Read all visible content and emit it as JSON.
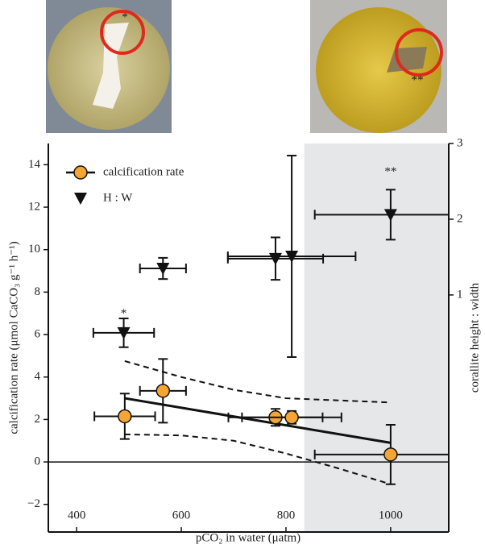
{
  "chart_data": {
    "type": "scatter",
    "xlabel": "pCO₂ in water (μatm)",
    "ylabel": "calcification rate (μmol CaCO₃ g⁻¹ h⁻¹)",
    "y2label": "corallite height : width",
    "xlim": [
      346,
      1111
    ],
    "xticks": [
      400,
      600,
      800,
      1000
    ],
    "ylim": [
      -3.3,
      15
    ],
    "yticks": [
      {
        "value": -2,
        "label": "−2"
      },
      0,
      2,
      4,
      6,
      8,
      10,
      12,
      14
    ],
    "y2lim": [
      -2.13,
      3
    ],
    "y2ticks": [
      1,
      2,
      3
    ],
    "shaded_from": 835,
    "series": [
      {
        "name": "calcification rate",
        "color": "#f4a533",
        "marker": "circle",
        "x": [
          492,
          565,
          780,
          811,
          1000
        ],
        "values": [
          2.15,
          3.35,
          2.1,
          2.1,
          0.35
        ],
        "x_err": [
          58,
          44,
          90,
          95,
          145
        ],
        "y_err": [
          1.07,
          1.5,
          0.4,
          0.3,
          1.4
        ]
      },
      {
        "name": "H : W",
        "color": "#111111",
        "marker": "triangle",
        "axis": "y2",
        "x": [
          490,
          565,
          780,
          811,
          1000
        ],
        "values": [
          0.5,
          1.35,
          1.48,
          1.51,
          2.06
        ],
        "x_err": [
          58,
          44,
          91,
          122,
          145
        ],
        "y_err": [
          0.19,
          0.14,
          0.28,
          1.33,
          0.33
        ]
      }
    ],
    "fit": {
      "x": [
        492,
        1000
      ],
      "values": [
        3.0,
        0.9
      ]
    },
    "band_upper": {
      "x": [
        492,
        600,
        700,
        800,
        1000
      ],
      "values": [
        4.75,
        4.0,
        3.4,
        3.0,
        2.8
      ]
    },
    "band_lower": {
      "x": [
        492,
        600,
        700,
        800,
        900,
        1000
      ],
      "values": [
        1.3,
        1.25,
        1.0,
        0.4,
        -0.3,
        -1.05
      ]
    },
    "annotations": [
      {
        "text": "*",
        "x": 490,
        "y2": 0.75
      },
      {
        "text": "**",
        "x": 1000,
        "y2": 2.62
      }
    ],
    "photo_labels": [
      "*",
      "**"
    ]
  }
}
